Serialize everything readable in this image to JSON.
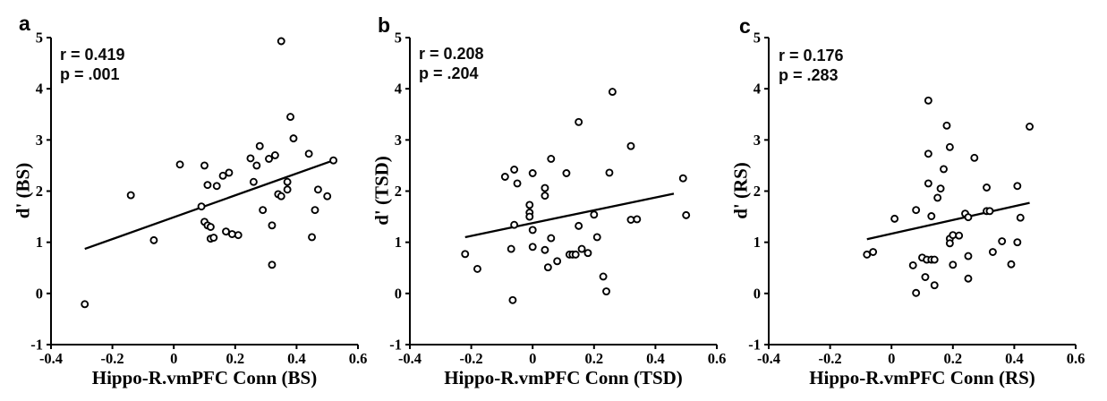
{
  "figure": {
    "background": "#ffffff",
    "ink": "#000000"
  },
  "chart_data": [
    {
      "type": "scatter",
      "panel_label": "a",
      "annotation": {
        "r_label": "r = 0.419",
        "p_label": "p = .001"
      },
      "xlabel": "Hippo-R.vmPFC Conn (BS)",
      "ylabel": "d' (BS)",
      "xlim": [
        -0.4,
        0.6
      ],
      "ylim": [
        -1,
        5
      ],
      "xticks": [
        -0.4,
        -0.2,
        0,
        0.2,
        0.4,
        0.6
      ],
      "xtick_labels": [
        "-0.4",
        "-0.2",
        "0",
        "0.2",
        "0.4",
        "0.6"
      ],
      "yticks": [
        -1,
        0,
        1,
        2,
        3,
        4,
        5
      ],
      "ytick_labels": [
        "-1",
        "0",
        "1",
        "2",
        "3",
        "4",
        "5"
      ],
      "grid": false,
      "legend": "none",
      "marker": "open-circle",
      "points": [
        [
          -0.29,
          -0.21
        ],
        [
          -0.14,
          1.92
        ],
        [
          -0.065,
          1.04
        ],
        [
          0.02,
          2.52
        ],
        [
          0.09,
          1.7
        ],
        [
          0.1,
          2.5
        ],
        [
          0.1,
          1.4
        ],
        [
          0.11,
          2.12
        ],
        [
          0.11,
          1.33
        ],
        [
          0.12,
          1.3
        ],
        [
          0.12,
          1.07
        ],
        [
          0.13,
          1.09
        ],
        [
          0.14,
          2.1
        ],
        [
          0.16,
          2.3
        ],
        [
          0.17,
          1.21
        ],
        [
          0.18,
          2.36
        ],
        [
          0.19,
          1.16
        ],
        [
          0.21,
          1.14
        ],
        [
          0.25,
          2.64
        ],
        [
          0.26,
          2.18
        ],
        [
          0.27,
          2.5
        ],
        [
          0.28,
          2.88
        ],
        [
          0.29,
          1.63
        ],
        [
          0.31,
          2.63
        ],
        [
          0.32,
          1.33
        ],
        [
          0.32,
          0.56
        ],
        [
          0.33,
          2.7
        ],
        [
          0.34,
          1.94
        ],
        [
          0.35,
          1.9
        ],
        [
          0.35,
          4.93
        ],
        [
          0.37,
          2.03
        ],
        [
          0.37,
          2.18
        ],
        [
          0.38,
          3.45
        ],
        [
          0.39,
          3.03
        ],
        [
          0.44,
          2.73
        ],
        [
          0.45,
          1.1
        ],
        [
          0.46,
          1.63
        ],
        [
          0.47,
          2.03
        ],
        [
          0.5,
          1.9
        ],
        [
          0.52,
          2.6
        ]
      ],
      "fit_line": {
        "x": [
          -0.29,
          0.52
        ],
        "y": [
          0.87,
          2.6
        ]
      }
    },
    {
      "type": "scatter",
      "panel_label": "b",
      "annotation": {
        "r_label": "r = 0.208",
        "p_label": "p = .204"
      },
      "xlabel": "Hippo-R.vmPFC Conn (TSD)",
      "ylabel": "d' (TSD)",
      "xlim": [
        -0.4,
        0.6
      ],
      "ylim": [
        -1,
        5
      ],
      "xticks": [
        -0.4,
        -0.2,
        0,
        0.2,
        0.4,
        0.6
      ],
      "xtick_labels": [
        "-0.4",
        "-0.2",
        "0",
        "0.2",
        "0.4",
        "0.6"
      ],
      "yticks": [
        -1,
        0,
        1,
        2,
        3,
        4,
        5
      ],
      "ytick_labels": [
        "-1",
        "0",
        "1",
        "2",
        "3",
        "4",
        "5"
      ],
      "grid": false,
      "legend": "none",
      "marker": "open-circle",
      "points": [
        [
          -0.22,
          0.77
        ],
        [
          -0.18,
          0.48
        ],
        [
          -0.09,
          2.28
        ],
        [
          -0.07,
          0.87
        ],
        [
          -0.065,
          -0.13
        ],
        [
          -0.06,
          2.42
        ],
        [
          -0.06,
          1.34
        ],
        [
          -0.05,
          2.15
        ],
        [
          -0.01,
          1.73
        ],
        [
          -0.01,
          1.58
        ],
        [
          -0.01,
          1.5
        ],
        [
          0.0,
          2.35
        ],
        [
          0.0,
          1.24
        ],
        [
          0.0,
          0.91
        ],
        [
          0.04,
          2.06
        ],
        [
          0.04,
          1.91
        ],
        [
          0.04,
          0.85
        ],
        [
          0.05,
          0.51
        ],
        [
          0.06,
          2.63
        ],
        [
          0.06,
          1.08
        ],
        [
          0.08,
          0.63
        ],
        [
          0.11,
          2.35
        ],
        [
          0.12,
          0.76
        ],
        [
          0.13,
          0.76
        ],
        [
          0.14,
          0.76
        ],
        [
          0.15,
          3.35
        ],
        [
          0.15,
          1.32
        ],
        [
          0.16,
          0.87
        ],
        [
          0.18,
          0.79
        ],
        [
          0.2,
          1.54
        ],
        [
          0.21,
          1.1
        ],
        [
          0.23,
          0.33
        ],
        [
          0.24,
          0.04
        ],
        [
          0.25,
          2.36
        ],
        [
          0.26,
          3.94
        ],
        [
          0.32,
          2.88
        ],
        [
          0.32,
          1.44
        ],
        [
          0.34,
          1.45
        ],
        [
          0.49,
          2.25
        ],
        [
          0.5,
          1.53
        ]
      ],
      "fit_line": {
        "x": [
          -0.22,
          0.46
        ],
        "y": [
          1.1,
          1.95
        ]
      }
    },
    {
      "type": "scatter",
      "panel_label": "c",
      "annotation": {
        "r_label": "r = 0.176",
        "p_label": "p = .283"
      },
      "xlabel": "Hippo-R.vmPFC Conn (RS)",
      "ylabel": "d' (RS)",
      "xlim": [
        -0.4,
        0.6
      ],
      "ylim": [
        -1,
        5
      ],
      "xticks": [
        -0.4,
        -0.2,
        0,
        0.2,
        0.4,
        0.6
      ],
      "xtick_labels": [
        "-0.4",
        "-0.2",
        "0",
        "0.2",
        "0.4",
        "0.6"
      ],
      "yticks": [
        -1,
        0,
        1,
        2,
        3,
        4,
        5
      ],
      "ytick_labels": [
        "-1",
        "0",
        "1",
        "2",
        "3",
        "4",
        "5"
      ],
      "grid": false,
      "legend": "none",
      "marker": "open-circle",
      "points": [
        [
          -0.08,
          0.76
        ],
        [
          -0.06,
          0.81
        ],
        [
          0.01,
          1.46
        ],
        [
          0.07,
          0.55
        ],
        [
          0.08,
          0.01
        ],
        [
          0.08,
          1.63
        ],
        [
          0.1,
          0.7
        ],
        [
          0.115,
          0.66
        ],
        [
          0.13,
          0.66
        ],
        [
          0.14,
          0.66
        ],
        [
          0.11,
          0.32
        ],
        [
          0.12,
          3.77
        ],
        [
          0.12,
          2.73
        ],
        [
          0.12,
          2.15
        ],
        [
          0.13,
          1.51
        ],
        [
          0.14,
          0.16
        ],
        [
          0.15,
          1.87
        ],
        [
          0.16,
          2.05
        ],
        [
          0.17,
          2.43
        ],
        [
          0.18,
          3.28
        ],
        [
          0.19,
          1.07
        ],
        [
          0.19,
          0.98
        ],
        [
          0.19,
          2.86
        ],
        [
          0.2,
          1.14
        ],
        [
          0.22,
          1.13
        ],
        [
          0.2,
          0.56
        ],
        [
          0.24,
          1.56
        ],
        [
          0.25,
          1.49
        ],
        [
          0.25,
          0.73
        ],
        [
          0.25,
          0.29
        ],
        [
          0.27,
          2.65
        ],
        [
          0.31,
          2.07
        ],
        [
          0.31,
          1.61
        ],
        [
          0.32,
          1.61
        ],
        [
          0.33,
          0.81
        ],
        [
          0.36,
          1.02
        ],
        [
          0.39,
          0.57
        ],
        [
          0.41,
          2.1
        ],
        [
          0.41,
          1.0
        ],
        [
          0.42,
          1.48
        ],
        [
          0.45,
          3.26
        ]
      ],
      "fit_line": {
        "x": [
          -0.08,
          0.45
        ],
        "y": [
          1.06,
          1.77
        ]
      }
    }
  ]
}
